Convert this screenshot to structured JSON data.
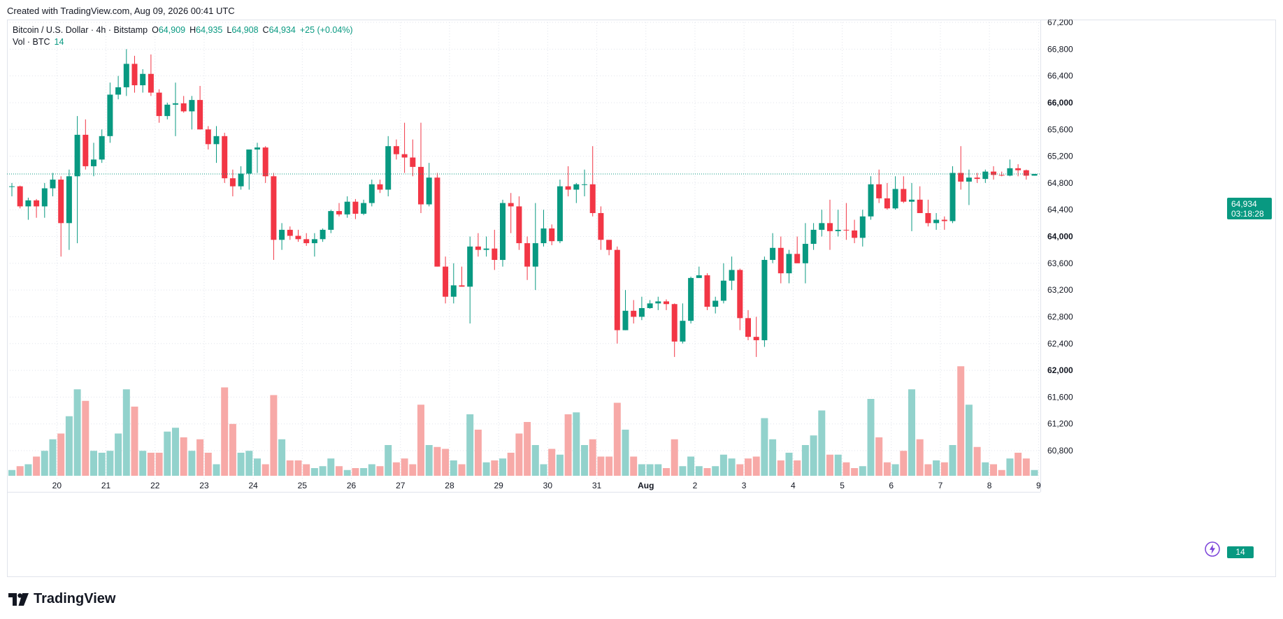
{
  "header": {
    "created": "Created with TradingView.com, Aug 09, 2026 00:41 UTC"
  },
  "legend": {
    "symbol": "Bitcoin / U.S. Dollar · 4h · Bitstamp",
    "o_label": "O",
    "o": "64,909",
    "h_label": "H",
    "h": "64,935",
    "l_label": "L",
    "l": "64,908",
    "c_label": "C",
    "c": "64,934",
    "change": "+25 (+0.04%)",
    "vol_label": "Vol · BTC",
    "vol_value": "14"
  },
  "last_price": {
    "price": "64,934",
    "countdown": "03:18:28",
    "volume": "14"
  },
  "brand": {
    "name": "TradingView"
  },
  "colors": {
    "up": "#089981",
    "down": "#f23645",
    "vol_up": "#92d2cc",
    "vol_down": "#f7a9a7",
    "grid": "#e0e3eb"
  },
  "icons": {
    "brand": "tradingview-logo-icon",
    "assistant": "lightning-bolt-icon"
  },
  "chart_data": {
    "type": "candlestick",
    "interval": "4h",
    "y_ticks": [
      "67,200",
      "66,800",
      "66,400",
      "66,000",
      "65,600",
      "65,200",
      "64,800",
      "64,400",
      "64,000",
      "63,600",
      "63,200",
      "62,800",
      "62,400",
      "62,000",
      "61,600",
      "61,200",
      "60,800"
    ],
    "y_bold_ticks": [
      "66,000",
      "64,000",
      "62,000"
    ],
    "ylim": [
      60400,
      67300
    ],
    "x_labels": [
      {
        "label": "20",
        "index": 5.5
      },
      {
        "label": "21",
        "index": 11.5
      },
      {
        "label": "22",
        "index": 17.5
      },
      {
        "label": "23",
        "index": 23.5
      },
      {
        "label": "24",
        "index": 29.5
      },
      {
        "label": "25",
        "index": 35.5
      },
      {
        "label": "26",
        "index": 41.5
      },
      {
        "label": "27",
        "index": 47.5
      },
      {
        "label": "28",
        "index": 53.5
      },
      {
        "label": "29",
        "index": 59.5
      },
      {
        "label": "30",
        "index": 65.5
      },
      {
        "label": "31",
        "index": 71.5
      },
      {
        "label": "Aug",
        "index": 77.5,
        "bold": true
      },
      {
        "label": "2",
        "index": 83.5
      },
      {
        "label": "3",
        "index": 89.5
      },
      {
        "label": "4",
        "index": 95.5
      },
      {
        "label": "5",
        "index": 101.5
      },
      {
        "label": "6",
        "index": 107.5
      },
      {
        "label": "7",
        "index": 113.5
      },
      {
        "label": "8",
        "index": 119.5
      },
      {
        "label": "9",
        "index": 125.5
      }
    ],
    "grid": true,
    "ohlcv": [
      [
        64750,
        64800,
        64600,
        64750,
        0.15
      ],
      [
        64750,
        64760,
        64420,
        64450,
        0.25
      ],
      [
        64450,
        64580,
        64250,
        64540,
        0.3
      ],
      [
        64540,
        64560,
        64280,
        64450,
        0.5
      ],
      [
        64450,
        64800,
        64280,
        64720,
        0.65
      ],
      [
        64720,
        64950,
        64600,
        64850,
        0.95
      ],
      [
        64850,
        64900,
        63700,
        64200,
        1.1
      ],
      [
        64200,
        65000,
        63800,
        64900,
        1.55
      ],
      [
        64900,
        65800,
        63900,
        65520,
        2.25
      ],
      [
        65520,
        65750,
        65000,
        65050,
        1.95
      ],
      [
        65050,
        65400,
        64900,
        65150,
        0.65
      ],
      [
        65150,
        65600,
        65100,
        65500,
        0.6
      ],
      [
        65500,
        66300,
        65400,
        66120,
        0.65
      ],
      [
        66120,
        66400,
        66050,
        66230,
        1.1
      ],
      [
        66230,
        66800,
        66100,
        66580,
        2.25
      ],
      [
        66580,
        66700,
        66150,
        66260,
        1.8
      ],
      [
        66260,
        66500,
        66150,
        66430,
        0.65
      ],
      [
        66430,
        66720,
        66100,
        66150,
        0.6
      ],
      [
        66150,
        66200,
        65700,
        65800,
        0.6
      ],
      [
        65800,
        66000,
        65750,
        65970,
        1.15
      ],
      [
        65970,
        66300,
        65500,
        65990,
        1.25
      ],
      [
        65990,
        66100,
        65850,
        65870,
        1.0
      ],
      [
        65870,
        66100,
        65600,
        66040,
        0.65
      ],
      [
        66040,
        66250,
        65600,
        65600,
        0.95
      ],
      [
        65600,
        65650,
        65300,
        65380,
        0.6
      ],
      [
        65380,
        65650,
        65100,
        65500,
        0.3
      ],
      [
        65500,
        65550,
        64800,
        64870,
        2.3
      ],
      [
        64870,
        65000,
        64600,
        64750,
        1.35
      ],
      [
        64750,
        65050,
        64700,
        64940,
        0.6
      ],
      [
        64940,
        65300,
        64700,
        65300,
        0.65
      ],
      [
        65300,
        65400,
        64950,
        65330,
        0.45
      ],
      [
        65330,
        65350,
        64800,
        64900,
        0.3
      ],
      [
        64900,
        64950,
        63650,
        63950,
        2.1
      ],
      [
        63950,
        64200,
        63800,
        64100,
        0.95
      ],
      [
        64100,
        64150,
        63950,
        64010,
        0.4
      ],
      [
        64010,
        64100,
        63920,
        63960,
        0.4
      ],
      [
        63960,
        64050,
        63860,
        63900,
        0.3
      ],
      [
        63900,
        64050,
        63700,
        63960,
        0.2
      ],
      [
        63960,
        64120,
        63920,
        64100,
        0.25
      ],
      [
        64100,
        64400,
        64050,
        64380,
        0.45
      ],
      [
        64380,
        64500,
        64300,
        64330,
        0.25
      ],
      [
        64330,
        64600,
        64280,
        64520,
        0.15
      ],
      [
        64520,
        64560,
        64260,
        64340,
        0.2
      ],
      [
        64340,
        64550,
        64320,
        64500,
        0.2
      ],
      [
        64500,
        64850,
        64450,
        64780,
        0.3
      ],
      [
        64780,
        64850,
        64650,
        64700,
        0.25
      ],
      [
        64700,
        65500,
        64600,
        65350,
        0.8
      ],
      [
        65350,
        65450,
        65150,
        65230,
        0.35
      ],
      [
        65230,
        65700,
        64950,
        65180,
        0.45
      ],
      [
        65180,
        65450,
        64900,
        65040,
        0.3
      ],
      [
        65040,
        65700,
        64350,
        64480,
        1.85
      ],
      [
        64480,
        65100,
        64450,
        64880,
        0.8
      ],
      [
        64880,
        64950,
        63550,
        63550,
        0.75
      ],
      [
        63550,
        63700,
        63000,
        63100,
        0.7
      ],
      [
        63100,
        63600,
        63000,
        63270,
        0.4
      ],
      [
        63270,
        63550,
        63250,
        63250,
        0.3
      ],
      [
        63250,
        64000,
        62700,
        63850,
        1.6
      ],
      [
        63850,
        64050,
        63700,
        63800,
        1.2
      ],
      [
        63800,
        64000,
        63700,
        63820,
        0.35
      ],
      [
        63820,
        64100,
        63500,
        63650,
        0.4
      ],
      [
        63650,
        64550,
        63550,
        64500,
        0.45
      ],
      [
        64500,
        64650,
        64050,
        64450,
        0.6
      ],
      [
        64450,
        64600,
        63800,
        63900,
        1.1
      ],
      [
        63900,
        64000,
        63350,
        63550,
        1.4
      ],
      [
        63550,
        64500,
        63200,
        63900,
        0.8
      ],
      [
        63900,
        64400,
        63850,
        64120,
        0.3
      ],
      [
        64120,
        64180,
        63870,
        63930,
        0.7
      ],
      [
        63930,
        64850,
        63900,
        64750,
        0.55
      ],
      [
        64750,
        65050,
        64600,
        64700,
        1.6
      ],
      [
        64700,
        64800,
        64500,
        64780,
        1.65
      ],
      [
        64780,
        65000,
        64600,
        64780,
        0.8
      ],
      [
        64780,
        65350,
        64300,
        64350,
        0.95
      ],
      [
        64350,
        64450,
        63800,
        63950,
        0.5
      ],
      [
        63950,
        63900,
        63720,
        63800,
        0.5
      ],
      [
        63800,
        63850,
        62400,
        62600,
        1.9
      ],
      [
        62600,
        63200,
        62600,
        62890,
        1.2
      ],
      [
        62890,
        63050,
        62700,
        62800,
        0.5
      ],
      [
        62800,
        63100,
        62750,
        62930,
        0.3
      ],
      [
        62930,
        63050,
        62920,
        63000,
        0.3
      ],
      [
        63000,
        63100,
        62900,
        63030,
        0.3
      ],
      [
        63030,
        63060,
        62900,
        62990,
        0.2
      ],
      [
        62990,
        63000,
        62200,
        62430,
        0.95
      ],
      [
        62430,
        63000,
        62400,
        62740,
        0.25
      ],
      [
        62740,
        63400,
        62700,
        63380,
        0.5
      ],
      [
        63380,
        63550,
        63380,
        63420,
        0.25
      ],
      [
        63420,
        63450,
        62900,
        62950,
        0.2
      ],
      [
        62950,
        63100,
        62850,
        63040,
        0.25
      ],
      [
        63040,
        63600,
        63000,
        63340,
        0.55
      ],
      [
        63340,
        63700,
        63200,
        63500,
        0.45
      ],
      [
        63500,
        63520,
        62600,
        62780,
        0.3
      ],
      [
        62780,
        62900,
        62450,
        62500,
        0.45
      ],
      [
        62500,
        62800,
        62200,
        62450,
        0.5
      ],
      [
        62450,
        63700,
        62350,
        63650,
        1.5
      ],
      [
        63650,
        64050,
        63600,
        63830,
        0.95
      ],
      [
        63830,
        64000,
        63300,
        63450,
        0.4
      ],
      [
        63450,
        63800,
        63300,
        63740,
        0.6
      ],
      [
        63740,
        64000,
        63600,
        63600,
        0.4
      ],
      [
        63600,
        64200,
        63300,
        63890,
        0.8
      ],
      [
        63890,
        64200,
        63800,
        64100,
        1.05
      ],
      [
        64100,
        64400,
        64000,
        64200,
        1.7
      ],
      [
        64200,
        64550,
        63800,
        64080,
        0.55
      ],
      [
        64080,
        64400,
        64000,
        64100,
        0.55
      ],
      [
        64100,
        64500,
        63950,
        64090,
        0.35
      ],
      [
        64090,
        64250,
        63900,
        63980,
        0.2
      ],
      [
        63980,
        64400,
        63850,
        64300,
        0.25
      ],
      [
        64300,
        64900,
        64250,
        64780,
        2.0
      ],
      [
        64780,
        65000,
        64500,
        64570,
        1.0
      ],
      [
        64570,
        64800,
        64400,
        64420,
        0.35
      ],
      [
        64420,
        64900,
        64400,
        64710,
        0.3
      ],
      [
        64710,
        64900,
        64500,
        64520,
        0.65
      ],
      [
        64520,
        64800,
        64080,
        64550,
        2.25
      ],
      [
        64550,
        64750,
        64350,
        64350,
        0.95
      ],
      [
        64350,
        64550,
        64150,
        64200,
        0.3
      ],
      [
        64200,
        64350,
        64100,
        64250,
        0.4
      ],
      [
        64250,
        64300,
        64100,
        64230,
        0.35
      ],
      [
        64230,
        65050,
        64200,
        64950,
        0.8
      ],
      [
        64950,
        65350,
        64700,
        64820,
        2.85
      ],
      [
        64820,
        65000,
        64470,
        64880,
        1.85
      ],
      [
        64880,
        64950,
        64800,
        64860,
        0.75
      ],
      [
        64860,
        65000,
        64800,
        64970,
        0.35
      ],
      [
        64970,
        65050,
        64850,
        64920,
        0.3
      ],
      [
        64920,
        64970,
        64900,
        64910,
        0.15
      ],
      [
        64910,
        65150,
        64900,
        65020,
        0.45
      ],
      [
        65020,
        65080,
        64900,
        64990,
        0.6
      ],
      [
        64990,
        65000,
        64850,
        64909,
        0.45
      ],
      [
        64909,
        64935,
        64908,
        64934,
        0.15
      ]
    ],
    "last_close": 64934
  }
}
